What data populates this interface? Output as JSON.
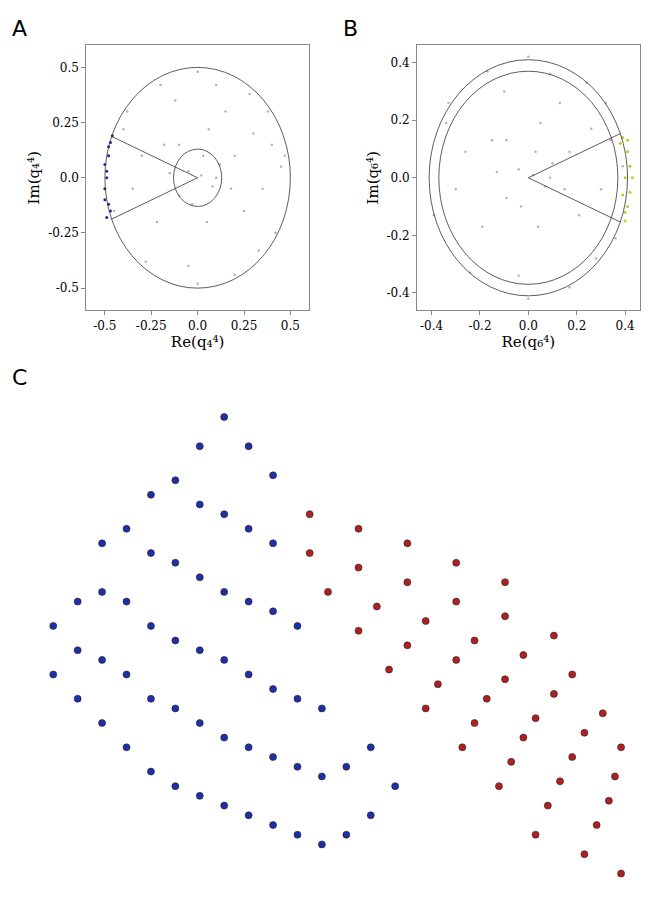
{
  "chart_data": [
    {
      "type": "scatter",
      "panel": "A",
      "x_label": "Re(q₄⁴)",
      "y_label": "Im(q₄⁴)",
      "xlim": [
        -0.6,
        0.6
      ],
      "ylim": [
        -0.6,
        0.6
      ],
      "xticks": [
        -0.5,
        -0.25,
        {
          "value": 0,
          "label": "0.0"
        },
        0.25,
        0.5
      ],
      "yticks": [
        -0.5,
        -0.25,
        {
          "value": 0,
          "label": "0.0"
        },
        0.25,
        0.5
      ],
      "grid": false,
      "circle_radii": [
        0.13,
        0.5
      ],
      "wedge_angles": [
        158,
        202
      ],
      "wedge_radius": 0.5,
      "series": [
        {
          "color": "#b4b4b4",
          "x": [
            0.02,
            -0.05,
            0.08,
            0.12,
            -0.1,
            0.2,
            -0.18,
            0.05,
            0.25,
            -0.22,
            0.3,
            -0.3,
            0.15,
            -0.12,
            0.35,
            -0.35,
            0.4,
            -0.05,
            0.1,
            -0.4,
            0.42,
            0.28,
            -0.28,
            0.45,
            -0.2,
            0.2,
            0.0,
            0.0,
            0.47,
            -0.1,
            0.03,
            0.1,
            -0.03,
            0.18,
            -0.15,
            0.33,
            -0.38,
            0.38,
            -0.45,
            0.06
          ],
          "y": [
            0.01,
            0.03,
            -0.04,
            0.06,
            -0.08,
            0.1,
            0.15,
            -0.2,
            -0.15,
            -0.2,
            0.2,
            0.1,
            0.3,
            0.35,
            -0.05,
            -0.05,
            0.15,
            -0.4,
            0.42,
            0.22,
            -0.25,
            0.38,
            -0.38,
            0.05,
            0.42,
            -0.44,
            0.48,
            -0.48,
            0.1,
            0.15,
            0.1,
            0.0,
            -0.12,
            -0.05,
            0.02,
            -0.33,
            0.3,
            0.3,
            -0.15,
            0.22
          ]
        },
        {
          "color": "#1a2a9e",
          "x": [
            -0.49,
            -0.48,
            -0.5,
            -0.49,
            -0.5,
            -0.48,
            -0.47,
            -0.46,
            -0.47,
            -0.49,
            -0.5,
            -0.48
          ],
          "y": [
            -0.18,
            -0.12,
            -0.05,
            0.0,
            0.06,
            0.1,
            0.16,
            0.19,
            -0.15,
            0.03,
            -0.1,
            0.14
          ]
        }
      ]
    },
    {
      "type": "scatter",
      "panel": "B",
      "x_label": "Re(q₆⁴)",
      "y_label": "Im(q₆⁴)",
      "xlim": [
        -0.46,
        0.46
      ],
      "ylim": [
        -0.46,
        0.46
      ],
      "xticks": [
        -0.4,
        -0.2,
        {
          "value": 0,
          "label": "0.0"
        },
        0.2,
        0.4
      ],
      "yticks": [
        -0.4,
        -0.2,
        {
          "value": 0,
          "label": "0.0"
        },
        0.2,
        0.4
      ],
      "grid": false,
      "circle_radii": [
        0.37,
        0.41
      ],
      "wedge_angles": [
        -22,
        22
      ],
      "wedge_radius": 0.41,
      "series": [
        {
          "color": "#b4b4b4",
          "x": [
            0.02,
            -0.04,
            0.07,
            0.1,
            -0.09,
            0.17,
            -0.15,
            0.04,
            0.21,
            -0.19,
            0.26,
            -0.26,
            0.13,
            -0.1,
            0.3,
            -0.3,
            0.34,
            -0.04,
            0.09,
            -0.34,
            0.36,
            0.24,
            -0.24,
            0.39,
            -0.17,
            0.17,
            0.0,
            0.0,
            0.41,
            -0.09,
            0.03,
            0.09,
            -0.03,
            0.15,
            -0.13,
            0.28,
            -0.33,
            0.32,
            -0.39,
            0.05
          ],
          "y": [
            0.01,
            0.03,
            -0.03,
            0.05,
            -0.07,
            0.09,
            0.13,
            -0.17,
            -0.13,
            -0.17,
            0.17,
            0.09,
            0.26,
            0.3,
            -0.04,
            -0.04,
            0.13,
            -0.34,
            0.36,
            0.19,
            -0.21,
            0.33,
            -0.33,
            0.04,
            0.37,
            -0.38,
            0.42,
            -0.42,
            0.09,
            0.13,
            0.09,
            0.0,
            -0.1,
            -0.04,
            0.02,
            -0.28,
            0.26,
            0.26,
            -0.13,
            0.19
          ]
        },
        {
          "color": "#c8c82a",
          "x": [
            0.4,
            0.41,
            0.42,
            0.4,
            0.42,
            0.41,
            0.39,
            0.38,
            0.4,
            0.43,
            0.39,
            0.41
          ],
          "y": [
            -0.15,
            -0.1,
            -0.05,
            0.0,
            0.04,
            0.09,
            0.14,
            0.12,
            -0.12,
            0.0,
            -0.06,
            0.13
          ]
        }
      ]
    },
    {
      "type": "scatter",
      "panel": "C",
      "tick_labels": false,
      "xlim": [
        0,
        100
      ],
      "ylim": [
        0,
        100
      ],
      "series": [
        {
          "color": "#1f2fa8",
          "x": [
            5,
            5,
            9,
            9,
            9,
            13,
            13,
            13,
            13,
            17,
            17,
            17,
            17,
            21,
            21,
            21,
            21,
            21,
            25,
            25,
            25,
            25,
            25,
            29,
            29,
            29,
            29,
            29,
            29,
            33,
            33,
            33,
            33,
            33,
            33,
            37,
            37,
            37,
            37,
            37,
            37,
            41,
            41,
            41,
            41,
            41,
            41,
            45,
            45,
            45,
            45,
            49,
            49,
            49,
            53,
            53,
            57,
            57,
            61
          ],
          "y": [
            45,
            55,
            40,
            50,
            60,
            35,
            48,
            62,
            72,
            30,
            45,
            60,
            75,
            25,
            40,
            55,
            70,
            82,
            22,
            38,
            52,
            68,
            85,
            20,
            35,
            50,
            65,
            80,
            92,
            18,
            32,
            48,
            62,
            78,
            98,
            16,
            30,
            45,
            60,
            75,
            92,
            14,
            28,
            42,
            58,
            72,
            86,
            12,
            26,
            40,
            55,
            10,
            24,
            38,
            12,
            26,
            16,
            30,
            22
          ]
        },
        {
          "color": "#b02020",
          "x": [
            47,
            55,
            63,
            71,
            79,
            47,
            55,
            63,
            71,
            79,
            87,
            50,
            58,
            66,
            74,
            82,
            90,
            55,
            63,
            71,
            79,
            87,
            95,
            60,
            68,
            76,
            84,
            92,
            98,
            66,
            74,
            82,
            90,
            97,
            72,
            80,
            88,
            96,
            78,
            86,
            94,
            84,
            92,
            98
          ],
          "y": [
            78,
            75,
            72,
            68,
            64,
            70,
            67,
            64,
            60,
            57,
            53,
            62,
            59,
            56,
            52,
            49,
            45,
            54,
            51,
            48,
            44,
            41,
            37,
            46,
            43,
            40,
            36,
            33,
            30,
            38,
            35,
            32,
            28,
            24,
            30,
            27,
            23,
            19,
            22,
            18,
            14,
            12,
            8,
            4
          ]
        }
      ]
    }
  ]
}
